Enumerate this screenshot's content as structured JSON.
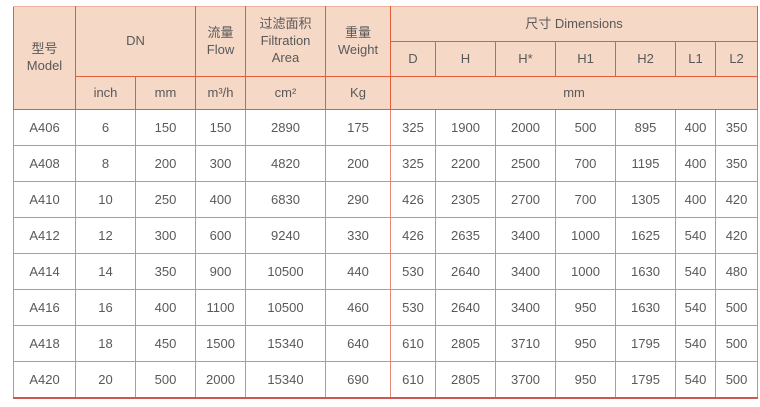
{
  "table": {
    "header": {
      "model": {
        "zh": "型号",
        "en": "Model"
      },
      "dn": "DN",
      "flow": {
        "zh": "流量",
        "en": "Flow"
      },
      "filtration_area": {
        "zh": "过滤面积",
        "en_line1": "Filtration",
        "en_line2": "Area"
      },
      "weight": {
        "zh": "重量",
        "en": "Weight"
      },
      "dimensions": "尺寸 Dimensions",
      "dimension_cols": [
        "D",
        "H",
        "H*",
        "H1",
        "H2",
        "L1",
        "L2"
      ],
      "units": {
        "dn_inch": "inch",
        "dn_mm": "mm",
        "flow": "m³/h",
        "area": "cm²",
        "weight": "Kg",
        "dimensions": "mm"
      }
    },
    "rows": [
      {
        "model": "A406",
        "values": [
          "6",
          "150",
          "150",
          "2890",
          "175",
          "325",
          "1900",
          "2000",
          "500",
          "895",
          "400",
          "350"
        ]
      },
      {
        "model": "A408",
        "values": [
          "8",
          "200",
          "300",
          "4820",
          "200",
          "325",
          "2200",
          "2500",
          "700",
          "1195",
          "400",
          "350"
        ]
      },
      {
        "model": "A410",
        "values": [
          "10",
          "250",
          "400",
          "6830",
          "290",
          "426",
          "2305",
          "2700",
          "700",
          "1305",
          "400",
          "420"
        ]
      },
      {
        "model": "A412",
        "values": [
          "12",
          "300",
          "600",
          "9240",
          "330",
          "426",
          "2635",
          "3400",
          "1000",
          "1625",
          "540",
          "420"
        ]
      },
      {
        "model": "A414",
        "values": [
          "14",
          "350",
          "900",
          "10500",
          "440",
          "530",
          "2640",
          "3400",
          "1000",
          "1630",
          "540",
          "480"
        ]
      },
      {
        "model": "A416",
        "values": [
          "16",
          "400",
          "1100",
          "10500",
          "460",
          "530",
          "2640",
          "3400",
          "950",
          "1630",
          "540",
          "500"
        ]
      },
      {
        "model": "A418",
        "values": [
          "18",
          "450",
          "1500",
          "15340",
          "640",
          "610",
          "2805",
          "3710",
          "950",
          "1795",
          "540",
          "500"
        ]
      },
      {
        "model": "A420",
        "values": [
          "20",
          "500",
          "2000",
          "15340",
          "690",
          "610",
          "2805",
          "3700",
          "950",
          "1795",
          "540",
          "500"
        ]
      }
    ]
  },
  "colors": {
    "header_bg": "#f5d8c6",
    "header_border": "#df5f3a",
    "data_border": "#e28677",
    "bottom_border": "#c75b52",
    "text": "#595959"
  }
}
